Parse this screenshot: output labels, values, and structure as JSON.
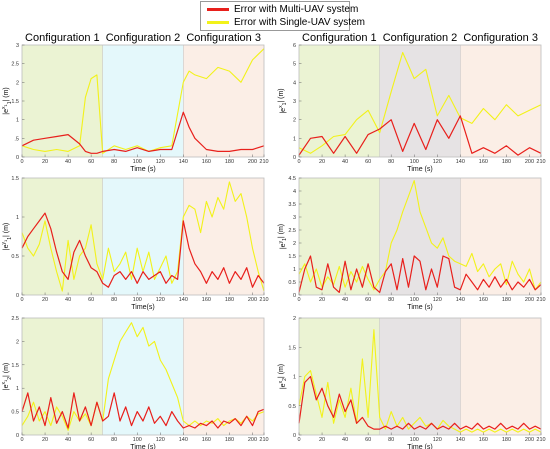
{
  "legend": {
    "multi_label": "Error with Multi-UAV system",
    "single_label": "Error with Single-UAV system"
  },
  "colors": {
    "multi": "#e8201c",
    "single": "#f2f21a",
    "zone_green": "#ebf3d3",
    "zone_cyan": "#e4f8fb",
    "zone_pink": "#fbeee6",
    "zone_gray": "#e6e3e4"
  },
  "chart_data": [
    {
      "type": "line",
      "panel": "left-top",
      "configurations": [
        "Configuration 1",
        "Configuration 2",
        "Configuration 3"
      ],
      "zone_bounds": [
        0,
        70,
        140,
        210
      ],
      "zone_colors": [
        "green",
        "cyan",
        "pink"
      ],
      "xlabel": "Time (s)",
      "ylabel": "|e^{x_1}_1| (m)",
      "xlim": [
        0,
        210
      ],
      "ylim": [
        0,
        3
      ],
      "xticks": [
        0,
        20,
        40,
        60,
        80,
        100,
        120,
        140,
        160,
        180,
        200,
        210
      ],
      "yticks": [
        0,
        0.5,
        1,
        1.5,
        2,
        2.5,
        3
      ],
      "ytick_labels": [
        "0",
        ".5",
        "1",
        "1.5",
        "2",
        "2.5",
        "3"
      ],
      "x": [
        0,
        10,
        20,
        30,
        40,
        50,
        55,
        60,
        65,
        70,
        80,
        90,
        100,
        110,
        120,
        130,
        140,
        145,
        150,
        160,
        170,
        180,
        190,
        200,
        210
      ],
      "series": [
        {
          "key": "multi",
          "values": [
            0.3,
            0.45,
            0.5,
            0.55,
            0.6,
            0.35,
            0.15,
            0.1,
            0.1,
            0.15,
            0.2,
            0.15,
            0.25,
            0.15,
            0.2,
            0.2,
            1.2,
            0.8,
            0.5,
            0.2,
            0.15,
            0.15,
            0.2,
            0.2,
            0.3
          ]
        },
        {
          "key": "single",
          "values": [
            0.3,
            0.2,
            0.15,
            0.2,
            0.15,
            0.3,
            1.6,
            2.1,
            2.2,
            0.1,
            0.3,
            0.2,
            0.3,
            0.15,
            0.25,
            0.3,
            2.0,
            2.3,
            2.2,
            2.1,
            2.4,
            2.3,
            2.0,
            2.6,
            2.9
          ]
        }
      ]
    },
    {
      "type": "line",
      "panel": "left-middle",
      "zone_bounds": [
        0,
        70,
        140,
        210
      ],
      "zone_colors": [
        "green",
        "cyan",
        "pink"
      ],
      "xlabel": "Time(s)",
      "ylabel": "|e^{y_1}_1| (m)",
      "xlim": [
        0,
        210
      ],
      "ylim": [
        0,
        1.5
      ],
      "xticks": [
        0,
        20,
        40,
        60,
        80,
        100,
        120,
        140,
        160,
        180,
        200,
        210
      ],
      "yticks": [
        0,
        0.5,
        1,
        1.5
      ],
      "ytick_labels": [
        "0",
        "0.5",
        "1",
        "1.5"
      ],
      "x": [
        0,
        5,
        10,
        15,
        20,
        25,
        30,
        35,
        40,
        45,
        50,
        55,
        60,
        65,
        70,
        75,
        80,
        85,
        90,
        95,
        100,
        105,
        110,
        115,
        120,
        125,
        130,
        135,
        140,
        145,
        150,
        155,
        160,
        165,
        170,
        175,
        180,
        185,
        190,
        195,
        200,
        205,
        210
      ],
      "series": [
        {
          "key": "multi",
          "values": [
            0.6,
            0.75,
            0.85,
            0.95,
            1.05,
            0.85,
            0.55,
            0.3,
            0.2,
            0.55,
            0.7,
            0.5,
            0.35,
            0.3,
            0.15,
            0.1,
            0.25,
            0.3,
            0.2,
            0.3,
            0.15,
            0.3,
            0.2,
            0.25,
            0.3,
            0.15,
            0.25,
            0.2,
            0.95,
            0.6,
            0.4,
            0.3,
            0.15,
            0.3,
            0.2,
            0.35,
            0.15,
            0.3,
            0.2,
            0.35,
            0.1,
            0.25,
            0.15
          ]
        },
        {
          "key": "single",
          "values": [
            0.8,
            0.6,
            0.5,
            0.65,
            0.95,
            0.6,
            0.3,
            0.05,
            0.7,
            0.2,
            0.5,
            0.6,
            0.9,
            0.4,
            0.2,
            0.6,
            0.3,
            0.4,
            0.55,
            0.2,
            0.6,
            0.3,
            0.55,
            0.2,
            0.35,
            0.5,
            0.15,
            0.3,
            1.0,
            1.15,
            1.1,
            0.8,
            1.2,
            1.0,
            1.25,
            1.1,
            1.45,
            1.2,
            1.3,
            1.0,
            0.6,
            0.3,
            0.05
          ]
        }
      ]
    },
    {
      "type": "line",
      "panel": "left-bottom",
      "zone_bounds": [
        0,
        70,
        140,
        210
      ],
      "zone_colors": [
        "green",
        "cyan",
        "pink"
      ],
      "xlabel": "Time (s)",
      "ylabel": "|e^{x_1}_2| (m)",
      "xlim": [
        0,
        210
      ],
      "ylim": [
        0,
        2.5
      ],
      "xticks": [
        0,
        20,
        40,
        60,
        80,
        100,
        120,
        140,
        160,
        180,
        200,
        210
      ],
      "yticks": [
        0,
        0.5,
        1,
        1.5,
        2,
        2.5
      ],
      "ytick_labels": [
        "0",
        "0.5",
        "1",
        "1.5",
        "2",
        "2.5"
      ],
      "x": [
        0,
        5,
        10,
        15,
        20,
        25,
        30,
        35,
        40,
        45,
        50,
        55,
        60,
        65,
        70,
        75,
        80,
        85,
        90,
        95,
        100,
        105,
        110,
        115,
        120,
        125,
        130,
        135,
        140,
        145,
        150,
        155,
        160,
        165,
        170,
        175,
        180,
        185,
        190,
        195,
        200,
        205,
        210
      ],
      "series": [
        {
          "key": "multi",
          "values": [
            0.5,
            0.9,
            0.3,
            0.6,
            0.2,
            0.8,
            0.25,
            0.5,
            0.15,
            0.9,
            0.3,
            0.6,
            0.2,
            0.7,
            0.3,
            0.4,
            0.9,
            0.3,
            0.6,
            0.2,
            0.5,
            0.3,
            0.6,
            0.25,
            0.4,
            0.2,
            0.5,
            0.3,
            0.15,
            0.2,
            0.15,
            0.25,
            0.2,
            0.3,
            0.15,
            0.3,
            0.25,
            0.35,
            0.2,
            0.4,
            0.2,
            0.5,
            0.55
          ]
        },
        {
          "key": "single",
          "values": [
            0.2,
            0.4,
            0.7,
            0.3,
            0.5,
            0.2,
            0.6,
            0.4,
            0.1,
            0.5,
            0.3,
            0.45,
            0.2,
            0.7,
            0.3,
            1.2,
            1.6,
            2.0,
            2.2,
            2.4,
            2.1,
            2.3,
            1.9,
            2.0,
            1.6,
            1.4,
            1.1,
            0.8,
            0.3,
            0.2,
            0.3,
            0.2,
            0.3,
            0.25,
            0.35,
            0.2,
            0.3,
            0.35,
            0.25,
            0.4,
            0.3,
            0.45,
            0.5
          ]
        }
      ]
    },
    {
      "type": "line",
      "panel": "right-top",
      "configurations": [
        "Configuration 1",
        "Configuration 2",
        "Configuration 3"
      ],
      "zone_bounds": [
        0,
        70,
        140,
        210
      ],
      "zone_colors": [
        "green",
        "gray",
        "pink"
      ],
      "xlabel": "Time (s)",
      "ylabel": "|e^{x}_1| (m)",
      "xlim": [
        0,
        210
      ],
      "ylim": [
        0,
        6
      ],
      "xticks": [
        0,
        20,
        40,
        60,
        80,
        100,
        120,
        140,
        160,
        180,
        200,
        210
      ],
      "yticks": [
        0,
        1,
        2,
        3,
        4,
        5,
        6
      ],
      "ytick_labels": [
        "0",
        "1",
        "2",
        "3",
        "4",
        "5",
        "6"
      ],
      "x": [
        0,
        10,
        20,
        30,
        40,
        50,
        60,
        70,
        80,
        90,
        100,
        110,
        120,
        130,
        140,
        150,
        160,
        170,
        180,
        190,
        200,
        210
      ],
      "series": [
        {
          "key": "multi",
          "values": [
            0.1,
            1.0,
            1.1,
            0.2,
            1.1,
            0.2,
            1.2,
            1.5,
            2.0,
            0.3,
            1.8,
            0.4,
            2.0,
            1.0,
            2.2,
            0.2,
            0.5,
            0.2,
            0.6,
            0.1,
            0.5,
            0.2
          ]
        },
        {
          "key": "single",
          "values": [
            0.5,
            0.2,
            0.6,
            1.1,
            1.2,
            2.0,
            2.5,
            1.3,
            3.5,
            5.6,
            4.2,
            4.7,
            2.2,
            3.3,
            2.1,
            1.8,
            2.6,
            2.0,
            2.8,
            2.2,
            2.5,
            2.8
          ]
        }
      ]
    },
    {
      "type": "line",
      "panel": "right-middle",
      "zone_bounds": [
        0,
        70,
        140,
        210
      ],
      "zone_colors": [
        "green",
        "gray",
        "pink"
      ],
      "xlabel": "Time (s)",
      "ylabel": "|e^{y}_1| (m)",
      "xlim": [
        0,
        210
      ],
      "ylim": [
        0,
        4.5
      ],
      "xticks": [
        0,
        20,
        40,
        60,
        80,
        100,
        120,
        140,
        160,
        180,
        200,
        210
      ],
      "yticks": [
        0,
        0.5,
        1,
        1.5,
        2,
        2.5,
        3,
        3.5,
        4,
        4.5
      ],
      "ytick_labels": [
        "0",
        "0.5",
        "1",
        "1.5",
        "2",
        "2.5",
        "3",
        "3.5",
        "4",
        "4.5"
      ],
      "x": [
        0,
        5,
        10,
        15,
        20,
        25,
        30,
        35,
        40,
        45,
        50,
        55,
        60,
        65,
        70,
        75,
        80,
        85,
        90,
        95,
        100,
        105,
        110,
        115,
        120,
        125,
        130,
        135,
        140,
        145,
        150,
        155,
        160,
        165,
        170,
        175,
        180,
        185,
        190,
        195,
        200,
        205,
        210
      ],
      "series": [
        {
          "key": "multi",
          "values": [
            0.1,
            1.0,
            1.5,
            0.3,
            0.2,
            1.2,
            0.3,
            0.1,
            1.3,
            0.2,
            1.0,
            0.3,
            1.2,
            0.3,
            0.1,
            0.9,
            1.2,
            0.2,
            1.4,
            0.3,
            1.5,
            1.3,
            0.2,
            1.0,
            0.3,
            1.5,
            1.4,
            0.3,
            0.2,
            0.8,
            0.5,
            0.2,
            0.6,
            0.3,
            0.7,
            0.3,
            0.6,
            0.2,
            0.5,
            0.3,
            0.6,
            0.2,
            0.4
          ]
        },
        {
          "key": "single",
          "values": [
            0.8,
            1.2,
            0.5,
            1.0,
            0.3,
            0.7,
            0.4,
            1.1,
            0.3,
            0.9,
            0.5,
            1.1,
            0.6,
            0.2,
            0.6,
            0.9,
            2.0,
            2.5,
            3.2,
            3.8,
            4.4,
            3.2,
            2.6,
            2.0,
            1.8,
            2.2,
            1.5,
            1.3,
            1.2,
            1.1,
            1.6,
            0.9,
            1.2,
            0.7,
            1.0,
            1.2,
            0.4,
            1.3,
            0.8,
            0.5,
            1.0,
            0.2,
            0.5
          ]
        }
      ]
    },
    {
      "type": "line",
      "panel": "right-bottom",
      "zone_bounds": [
        0,
        70,
        140,
        210
      ],
      "zone_colors": [
        "green",
        "gray",
        "pink"
      ],
      "xlabel": "Time (s)",
      "ylabel": "|e^{x}_2| (m)",
      "xlim": [
        0,
        210
      ],
      "ylim": [
        0,
        2
      ],
      "xticks": [
        0,
        20,
        40,
        60,
        80,
        100,
        120,
        140,
        160,
        180,
        200,
        210
      ],
      "yticks": [
        0,
        0.5,
        1,
        1.5,
        2
      ],
      "ytick_labels": [
        "0",
        "0.5",
        "1",
        "1.5",
        "2"
      ],
      "x": [
        0,
        5,
        10,
        15,
        20,
        25,
        30,
        35,
        40,
        45,
        50,
        55,
        60,
        65,
        70,
        75,
        80,
        85,
        90,
        95,
        100,
        105,
        110,
        115,
        120,
        125,
        130,
        135,
        140,
        145,
        150,
        155,
        160,
        165,
        170,
        175,
        180,
        185,
        190,
        195,
        200,
        205,
        210
      ],
      "series": [
        {
          "key": "multi",
          "values": [
            0.2,
            0.9,
            1.0,
            0.6,
            0.8,
            0.5,
            0.3,
            0.7,
            0.4,
            0.6,
            0.2,
            0.3,
            0.15,
            0.1,
            0.1,
            0.15,
            0.1,
            0.15,
            0.1,
            0.2,
            0.1,
            0.15,
            0.1,
            0.2,
            0.1,
            0.15,
            0.1,
            0.2,
            0.1,
            0.15,
            0.1,
            0.2,
            0.1,
            0.15,
            0.1,
            0.2,
            0.1,
            0.15,
            0.1,
            0.2,
            0.1,
            0.15,
            0.1
          ]
        },
        {
          "key": "single",
          "values": [
            0.5,
            1.0,
            1.1,
            0.7,
            0.3,
            0.9,
            0.2,
            0.6,
            0.3,
            0.8,
            0.2,
            1.3,
            0.3,
            1.8,
            0.3,
            0.1,
            0.4,
            0.15,
            0.3,
            0.1,
            0.2,
            0.3,
            0.15,
            0.2,
            0.1,
            0.25,
            0.15,
            0.1,
            0.05,
            0.1,
            0.05,
            0.1,
            0.05,
            0.1,
            0.05,
            0.1,
            0.05,
            0.1,
            0.05,
            0.1,
            0.05,
            0.1,
            0.05
          ]
        }
      ]
    }
  ]
}
